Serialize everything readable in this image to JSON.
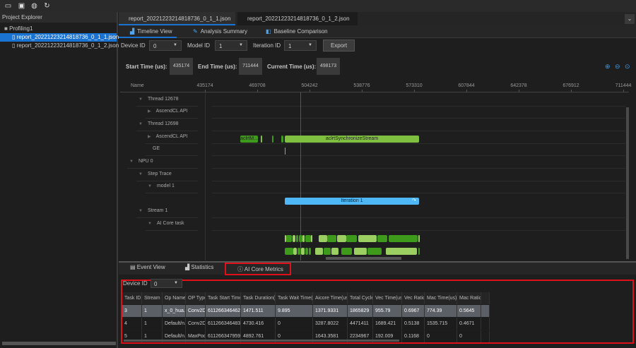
{
  "toolbar": {
    "icons": [
      "open-folder-icon",
      "import-folder-icon",
      "settings-icon",
      "refresh-icon"
    ]
  },
  "explorer": {
    "title": "Project Explorer",
    "project": "Profiling1",
    "files": [
      "report_20221223214818736_0_1_1.json",
      "report_20221223214818736_0_1_2.json"
    ]
  },
  "file_tabs": [
    {
      "label": "report_20221223214818736_0_1_1.json",
      "active": true
    },
    {
      "label": "report_20221223214818736_0_1_2.json",
      "active": false
    }
  ],
  "view_tabs": [
    {
      "label": "Timeline View",
      "active": true
    },
    {
      "label": "Analysis Summary"
    },
    {
      "label": "Baseline Comparison"
    }
  ],
  "filters": {
    "device_label": "Device ID",
    "device": "0",
    "model_label": "Model ID",
    "model": "1",
    "iteration_label": "Iteration ID",
    "iteration": "1",
    "export": "Export"
  },
  "times": {
    "start_label": "Start Time (us):",
    "start": "435174",
    "end_label": "End Time (us):",
    "end": "711444",
    "current_label": "Current Time (us):",
    "current": "498173"
  },
  "timeline": {
    "name_header": "Name",
    "ticks": [
      "435174",
      "469708",
      "504242",
      "538776",
      "573310",
      "607844",
      "642378",
      "676912",
      "711444"
    ],
    "rows": [
      {
        "label": "Thread 12678",
        "indent": 1
      },
      {
        "label": "AscendCL API",
        "indent": 2,
        "collapsed": true
      },
      {
        "label": "Thread 12698",
        "indent": 1
      },
      {
        "label": "AscendCL API",
        "indent": 2,
        "collapsed": true
      },
      {
        "label": "GE",
        "indent": 2,
        "leaf": true
      },
      {
        "label": "NPU 0",
        "indent": 0
      },
      {
        "label": "Step Trace",
        "indent": 1
      },
      {
        "label": "model 1",
        "indent": 2
      },
      {
        "label": "Stream 1",
        "indent": 1
      },
      {
        "label": "AI Core task",
        "indent": 2
      }
    ],
    "bars": {
      "acl_short": "aclrtM...",
      "acl_sync": "aclrtSynchronizeStream",
      "iteration": "Iteration 1",
      "core_row1": [
        "D...",
        "D...",
        "D...",
        "D...",
        "D...",
        "D...",
        "D..."
      ],
      "core_row2": [
        "D...",
        "D...",
        "D...",
        "D...",
        "D...",
        "D...",
        "Default/Ar..."
      ]
    }
  },
  "bottom_tabs": [
    {
      "label": "Event View"
    },
    {
      "label": "Statistics"
    },
    {
      "label": "AI Core Metrics",
      "active": true
    }
  ],
  "metrics": {
    "device_label": "Device ID",
    "device": "0",
    "columns": [
      "Task ID",
      "Stream ID",
      "Op Name",
      "OP Type",
      "Task Start Time",
      "Task Duration(us)",
      "Task Wait Time(us)",
      "Aicore Time(us)",
      "Total Cycles",
      "Vec Time(us)",
      "Vec Ratio",
      "Mac Time(us)",
      "Mac Ratio",
      ""
    ],
    "rows": [
      [
        "3",
        "1",
        "x_0_hua...",
        "Conv2D",
        "611266346462...",
        "1471.511",
        "9.895",
        "1371.9331",
        "1865829",
        "955.79",
        "0.6967",
        "774.39",
        "0.5645",
        ""
      ],
      [
        "4",
        "1",
        "Default/n...",
        "Conv2D",
        "611266346483...",
        "4730.416",
        "0",
        "3287.8022",
        "4471411",
        "1689.421",
        "0.5138",
        "1535.715",
        "0.4671",
        ""
      ],
      [
        "5",
        "1",
        "Default/n...",
        "MaxPool",
        "611266347959...",
        "4892.761",
        "0",
        "1643.3581",
        "2234967",
        "192.009",
        "0.1168",
        "0",
        "0",
        ""
      ]
    ]
  },
  "colors": {
    "accent": "#1a73d1",
    "highlight": "#e0101a",
    "bar_green": "#80c040",
    "bar_dark_green": "#3e9a1a",
    "iteration_blue": "#4db8f5"
  }
}
